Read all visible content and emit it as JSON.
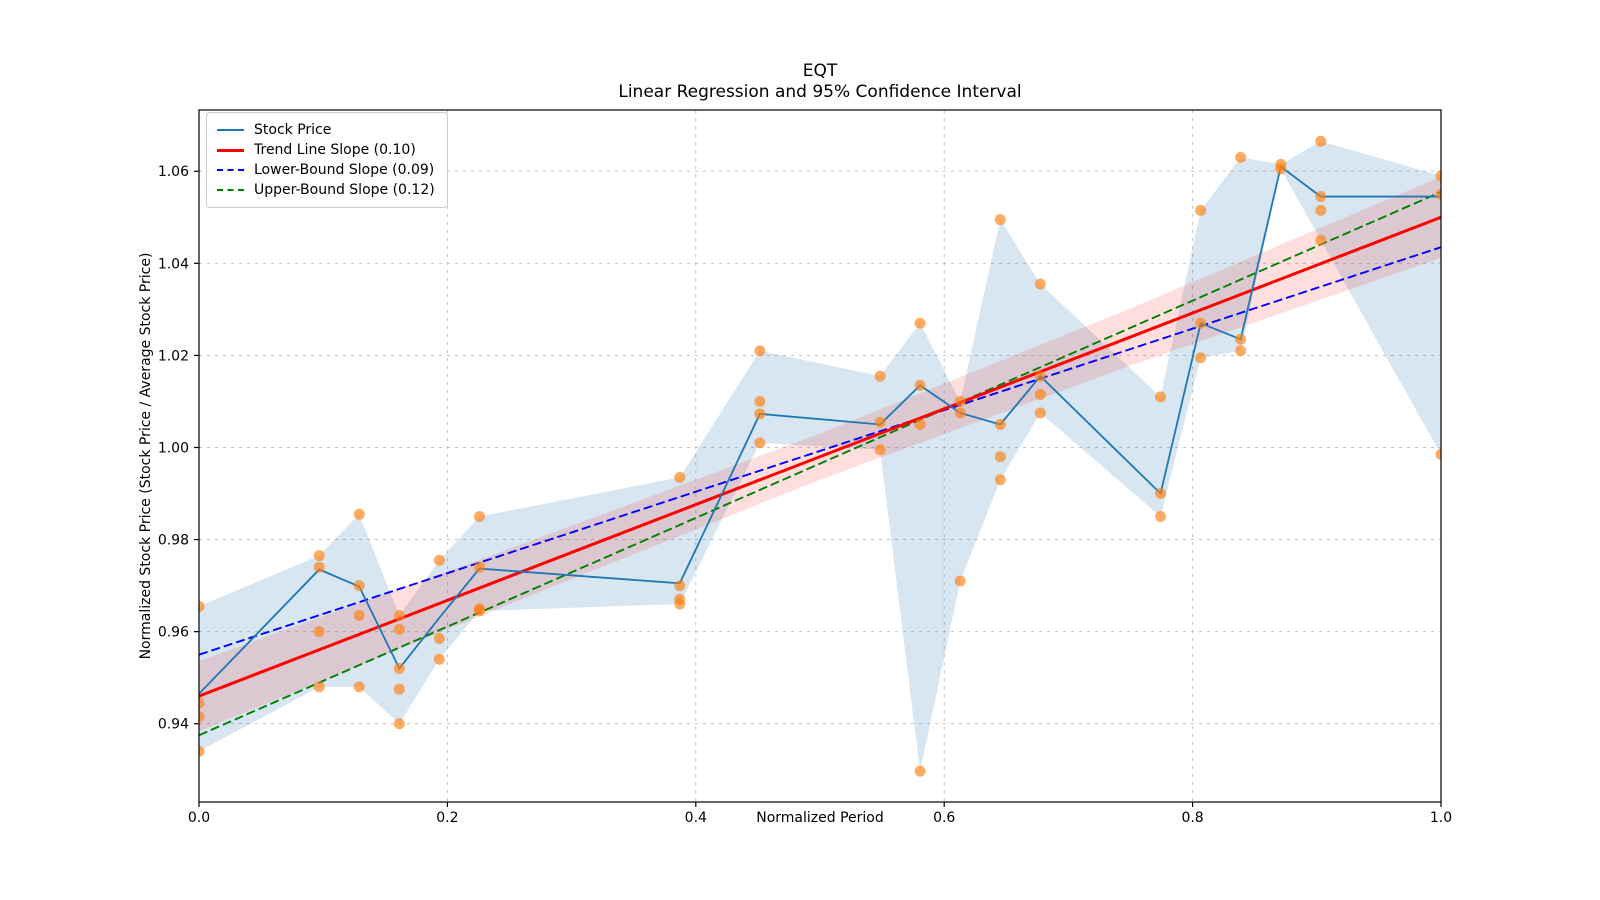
{
  "chart_data": {
    "type": "line+scatter",
    "title": "EQT",
    "subtitle": "Linear Regression and 95% Confidence Interval",
    "xlabel": "Normalized Period",
    "ylabel": "Normalized Stock Price (Stock Price / Average Stock Price)",
    "xlim": [
      0.0,
      1.0
    ],
    "ylim": [
      0.923,
      1.0733
    ],
    "xticks": [
      "0.0",
      "0.2",
      "0.4",
      "0.6",
      "0.8",
      "1.0"
    ],
    "xtick_values": [
      0.0,
      0.2,
      0.4,
      0.6,
      0.8,
      1.0
    ],
    "yticks": [
      "0.94",
      "0.96",
      "0.98",
      "1.00",
      "1.02",
      "1.04",
      "1.06"
    ],
    "ytick_values": [
      0.94,
      0.96,
      0.98,
      1.0,
      1.02,
      1.04,
      1.06
    ],
    "grid": true,
    "legend_position": "upper-left",
    "stock_line": {
      "name": "Stock Price",
      "x": [
        0.0,
        0.0968,
        0.129,
        0.1613,
        0.1935,
        0.2258,
        0.3871,
        0.4516,
        0.5484,
        0.5806,
        0.6129,
        0.6452,
        0.6774,
        0.7742,
        0.8065,
        0.8387,
        0.871,
        0.9032,
        1.0
      ],
      "y": [
        0.9465,
        0.9735,
        0.9698,
        0.952,
        0.963,
        0.9737,
        0.9705,
        1.0073,
        1.005,
        1.0135,
        1.0075,
        1.005,
        1.0155,
        0.99,
        1.027,
        1.0235,
        1.061,
        1.0545,
        1.0545
      ]
    },
    "stock_band": {
      "x": [
        0.0,
        0.0968,
        0.129,
        0.1613,
        0.1935,
        0.2258,
        0.3871,
        0.4516,
        0.5484,
        0.5806,
        0.6129,
        0.6452,
        0.6774,
        0.7742,
        0.8065,
        0.8387,
        0.871,
        0.9032,
        1.0
      ],
      "top": [
        0.9655,
        0.9765,
        0.9855,
        0.9635,
        0.9755,
        0.985,
        0.9935,
        1.021,
        1.0155,
        1.027,
        1.01,
        1.0495,
        1.0355,
        1.011,
        1.0515,
        1.063,
        1.0615,
        1.0665,
        1.059
      ],
      "bottom": [
        0.934,
        0.948,
        0.948,
        0.94,
        0.954,
        0.9645,
        0.966,
        1.001,
        0.9995,
        0.9297,
        0.971,
        0.993,
        1.0075,
        0.985,
        1.0195,
        1.021,
        1.0605,
        1.045,
        0.9985
      ]
    },
    "scatter": {
      "points": [
        [
          0.0,
          0.9655
        ],
        [
          0.0,
          0.9445
        ],
        [
          0.0,
          0.9415
        ],
        [
          0.0,
          0.934
        ],
        [
          0.0968,
          0.9765
        ],
        [
          0.0968,
          0.974
        ],
        [
          0.0968,
          0.96
        ],
        [
          0.0968,
          0.948
        ],
        [
          0.129,
          0.9855
        ],
        [
          0.129,
          0.97
        ],
        [
          0.129,
          0.9635
        ],
        [
          0.129,
          0.948
        ],
        [
          0.1613,
          0.9635
        ],
        [
          0.1613,
          0.9605
        ],
        [
          0.1613,
          0.952
        ],
        [
          0.1613,
          0.9475
        ],
        [
          0.1613,
          0.94
        ],
        [
          0.1935,
          0.9755
        ],
        [
          0.1935,
          0.9585
        ],
        [
          0.1935,
          0.954
        ],
        [
          0.2258,
          0.985
        ],
        [
          0.2258,
          0.974
        ],
        [
          0.2258,
          0.965
        ],
        [
          0.2258,
          0.9645
        ],
        [
          0.3871,
          0.9935
        ],
        [
          0.3871,
          0.97
        ],
        [
          0.3871,
          0.967
        ],
        [
          0.3871,
          0.966
        ],
        [
          0.4516,
          1.021
        ],
        [
          0.4516,
          1.01
        ],
        [
          0.4516,
          1.0073
        ],
        [
          0.4516,
          1.001
        ],
        [
          0.5484,
          1.0155
        ],
        [
          0.5484,
          1.0055
        ],
        [
          0.5484,
          0.9995
        ],
        [
          0.5806,
          1.027
        ],
        [
          0.5806,
          1.0135
        ],
        [
          0.5806,
          1.005
        ],
        [
          0.5806,
          0.9297
        ],
        [
          0.6129,
          1.01
        ],
        [
          0.6129,
          1.0075
        ],
        [
          0.6129,
          0.971
        ],
        [
          0.6452,
          1.0495
        ],
        [
          0.6452,
          1.005
        ],
        [
          0.6452,
          0.998
        ],
        [
          0.6452,
          0.993
        ],
        [
          0.6774,
          1.0355
        ],
        [
          0.6774,
          1.0155
        ],
        [
          0.6774,
          1.0115
        ],
        [
          0.6774,
          1.0075
        ],
        [
          0.7742,
          1.011
        ],
        [
          0.7742,
          0.99
        ],
        [
          0.7742,
          0.985
        ],
        [
          0.8065,
          1.0515
        ],
        [
          0.8065,
          1.027
        ],
        [
          0.8065,
          1.0195
        ],
        [
          0.8387,
          1.063
        ],
        [
          0.8387,
          1.0235
        ],
        [
          0.8387,
          1.021
        ],
        [
          0.871,
          1.0615
        ],
        [
          0.871,
          1.0605
        ],
        [
          0.9032,
          1.0665
        ],
        [
          0.9032,
          1.0545
        ],
        [
          0.9032,
          1.0515
        ],
        [
          0.9032,
          1.045
        ],
        [
          1.0,
          1.059
        ],
        [
          1.0,
          1.055
        ],
        [
          1.0,
          0.9985
        ]
      ]
    },
    "trend_line": {
      "name": "Trend Line Slope (0.10)",
      "slope_label": "0.10",
      "y_start": 0.946,
      "y_end": 1.05
    },
    "lower_line": {
      "name": "Lower-Bound Slope (0.09)",
      "slope_label": "0.09",
      "y_start": 0.955,
      "y_end": 1.0435
    },
    "upper_line": {
      "name": "Upper-Bound Slope (0.12)",
      "slope_label": "0.12",
      "y_start": 0.9375,
      "y_end": 1.0555
    },
    "ci_band": {
      "x": [
        0.0,
        0.25,
        0.5,
        0.75,
        1.0
      ],
      "top": [
        0.9536,
        0.978,
        1.003,
        1.0302,
        1.0588
      ],
      "bottom": [
        0.9384,
        0.966,
        0.993,
        1.0178,
        1.0412
      ]
    },
    "legend": {
      "items": [
        {
          "label": "Stock Price",
          "color": "#1f77b4",
          "style": "solid",
          "weight": 2
        },
        {
          "label": "Trend Line Slope (0.10)",
          "color": "#ff0000",
          "style": "solid",
          "weight": 3
        },
        {
          "label": "Lower-Bound Slope (0.09)",
          "color": "#0000ff",
          "style": "dashed",
          "weight": 2
        },
        {
          "label": "Upper-Bound Slope (0.12)",
          "color": "#008000",
          "style": "dashed",
          "weight": 2
        }
      ]
    },
    "colors": {
      "stock_line": "#1f77b4",
      "scatter": "#ff7f0e",
      "trend_line": "#ff0000",
      "lower_bound": "#0000ff",
      "upper_bound": "#008000",
      "stock_band_fill": "#1f77b4",
      "stock_band_opacity": 0.18,
      "ci_band_fill": "#ff0000",
      "ci_band_opacity": 0.13,
      "grid": "#bbbbbb",
      "spine": "#000000",
      "text": "#000000"
    }
  }
}
